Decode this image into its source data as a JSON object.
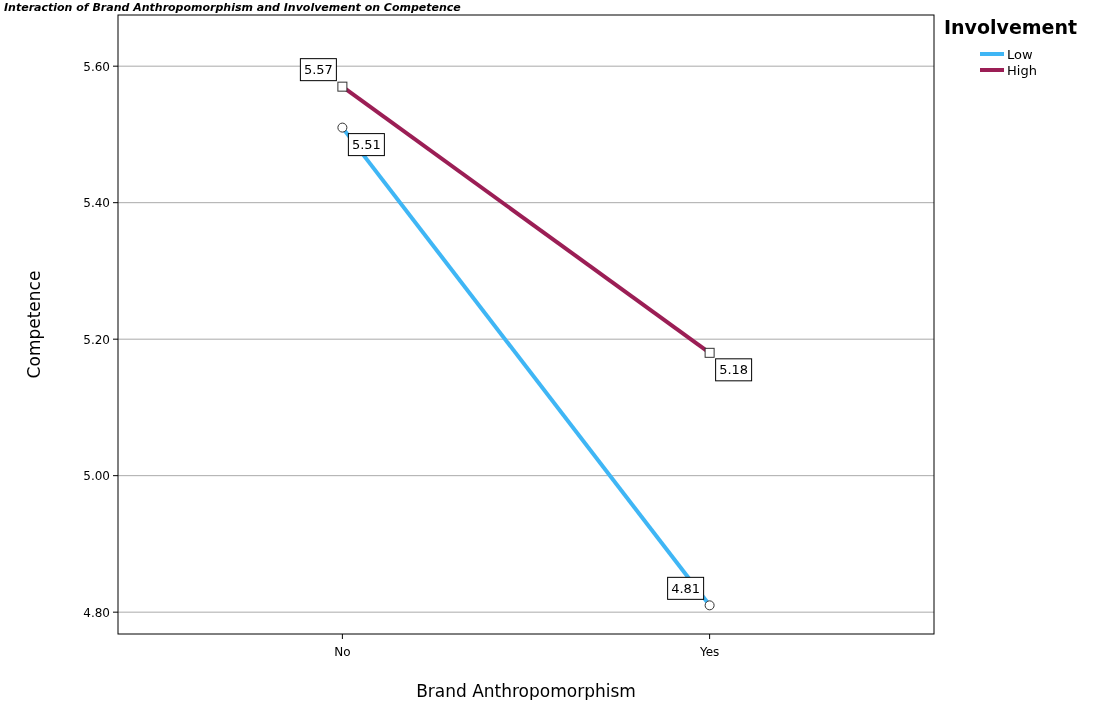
{
  "chart_data": {
    "type": "line",
    "title": "Interaction of Brand Anthropomorphism and Involvement on Competence",
    "xlabel": "Brand Anthropomorphism",
    "ylabel": "Competence",
    "legend_title": "Involvement",
    "categories": [
      "No",
      "Yes"
    ],
    "series": [
      {
        "name": "Low",
        "color": "#3fb6f5",
        "values": [
          5.51,
          4.81
        ],
        "marker": "circle"
      },
      {
        "name": "High",
        "color": "#9b1e55",
        "values": [
          5.57,
          5.18
        ],
        "marker": "square"
      }
    ],
    "ylim": [
      4.768,
      5.675
    ],
    "yticks": [
      {
        "value": 4.8,
        "label": "4.80"
      },
      {
        "value": 5.0,
        "label": "5.00"
      },
      {
        "value": 5.2,
        "label": "5.20"
      },
      {
        "value": 5.4,
        "label": "5.40"
      },
      {
        "value": 5.6,
        "label": "5.60"
      }
    ],
    "grid": "y",
    "legend": "top right",
    "data_labels": true
  }
}
